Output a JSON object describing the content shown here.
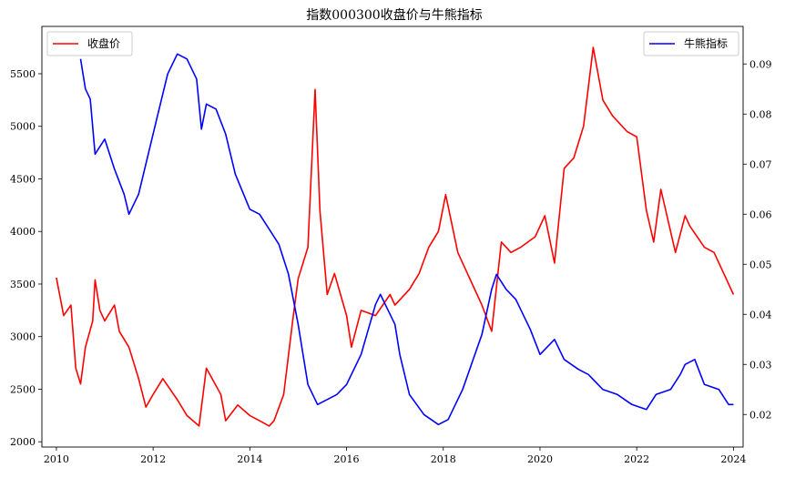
{
  "chart_data": {
    "type": "line",
    "title": "指数000300收盘价与牛熊指标",
    "xlabel": "",
    "ylabel_left": "",
    "ylabel_right": "",
    "x_ticks": [
      "2010",
      "2012",
      "2014",
      "2016",
      "2018",
      "2020",
      "2022",
      "2024"
    ],
    "x_range": [
      2009.7,
      2024.2
    ],
    "left_axis": {
      "range": [
        1950,
        5950
      ],
      "ticks": [
        "2000",
        "2500",
        "3000",
        "3500",
        "4000",
        "4500",
        "5000",
        "5500"
      ]
    },
    "right_axis": {
      "range": [
        0.0135,
        0.0975
      ],
      "ticks": [
        "0.02",
        "0.03",
        "0.04",
        "0.05",
        "0.06",
        "0.07",
        "0.08",
        "0.09"
      ]
    },
    "grid": false,
    "series": [
      {
        "name": "收盘价",
        "axis": "left",
        "color": "#ff0000",
        "legend_position": "top-left",
        "x": [
          2010.0,
          2010.15,
          2010.3,
          2010.4,
          2010.5,
          2010.6,
          2010.75,
          2010.8,
          2010.9,
          2011.0,
          2011.2,
          2011.3,
          2011.5,
          2011.7,
          2011.85,
          2012.0,
          2012.2,
          2012.5,
          2012.7,
          2012.95,
          2013.1,
          2013.4,
          2013.5,
          2013.75,
          2014.0,
          2014.2,
          2014.4,
          2014.5,
          2014.7,
          2014.9,
          2015.0,
          2015.2,
          2015.35,
          2015.45,
          2015.6,
          2015.75,
          2016.0,
          2016.1,
          2016.3,
          2016.6,
          2016.9,
          2017.0,
          2017.3,
          2017.5,
          2017.7,
          2017.9,
          2018.05,
          2018.3,
          2018.6,
          2018.8,
          2019.0,
          2019.2,
          2019.4,
          2019.6,
          2019.9,
          2020.1,
          2020.3,
          2020.5,
          2020.7,
          2020.9,
          2021.1,
          2021.3,
          2021.5,
          2021.8,
          2022.0,
          2022.2,
          2022.35,
          2022.5,
          2022.8,
          2023.0,
          2023.1,
          2023.4,
          2023.6,
          2023.8,
          2024.0
        ],
        "values": [
          3560,
          3200,
          3300,
          2700,
          2550,
          2900,
          3150,
          3540,
          3250,
          3150,
          3300,
          3050,
          2900,
          2600,
          2330,
          2450,
          2600,
          2400,
          2250,
          2150,
          2700,
          2450,
          2200,
          2350,
          2250,
          2200,
          2150,
          2200,
          2450,
          3200,
          3550,
          3850,
          5350,
          4200,
          3400,
          3600,
          3200,
          2900,
          3250,
          3200,
          3400,
          3300,
          3450,
          3600,
          3850,
          4000,
          4350,
          3800,
          3500,
          3300,
          3050,
          3900,
          3800,
          3850,
          3950,
          4150,
          3700,
          4600,
          4700,
          5000,
          5750,
          5250,
          5100,
          4950,
          4900,
          4200,
          3900,
          4400,
          3800,
          4150,
          4050,
          3850,
          3800,
          3600,
          3400
        ]
      },
      {
        "name": "牛熊指标",
        "axis": "right",
        "color": "#0000ff",
        "legend_position": "top-right",
        "x": [
          2010.5,
          2010.6,
          2010.7,
          2010.8,
          2011.0,
          2011.2,
          2011.4,
          2011.5,
          2011.7,
          2011.9,
          2012.1,
          2012.3,
          2012.5,
          2012.7,
          2012.9,
          2013.0,
          2013.1,
          2013.3,
          2013.5,
          2013.7,
          2014.0,
          2014.2,
          2014.4,
          2014.6,
          2014.8,
          2015.0,
          2015.2,
          2015.4,
          2015.6,
          2015.8,
          2016.0,
          2016.3,
          2016.6,
          2016.7,
          2017.0,
          2017.1,
          2017.3,
          2017.6,
          2017.9,
          2018.1,
          2018.4,
          2018.8,
          2019.0,
          2019.1,
          2019.3,
          2019.5,
          2019.8,
          2020.0,
          2020.3,
          2020.5,
          2020.8,
          2021.0,
          2021.3,
          2021.6,
          2021.9,
          2022.2,
          2022.4,
          2022.7,
          2022.9,
          2023.0,
          2023.2,
          2023.4,
          2023.7,
          2023.9,
          2024.0
        ],
        "values": [
          0.091,
          0.085,
          0.083,
          0.072,
          0.075,
          0.069,
          0.064,
          0.06,
          0.064,
          0.072,
          0.08,
          0.088,
          0.092,
          0.091,
          0.087,
          0.077,
          0.082,
          0.081,
          0.076,
          0.068,
          0.061,
          0.06,
          0.057,
          0.054,
          0.048,
          0.038,
          0.026,
          0.022,
          0.023,
          0.024,
          0.026,
          0.032,
          0.042,
          0.044,
          0.038,
          0.032,
          0.024,
          0.02,
          0.018,
          0.019,
          0.025,
          0.036,
          0.045,
          0.048,
          0.045,
          0.043,
          0.037,
          0.032,
          0.035,
          0.031,
          0.029,
          0.028,
          0.025,
          0.024,
          0.022,
          0.021,
          0.024,
          0.025,
          0.028,
          0.03,
          0.031,
          0.026,
          0.025,
          0.022,
          0.022
        ]
      }
    ]
  }
}
